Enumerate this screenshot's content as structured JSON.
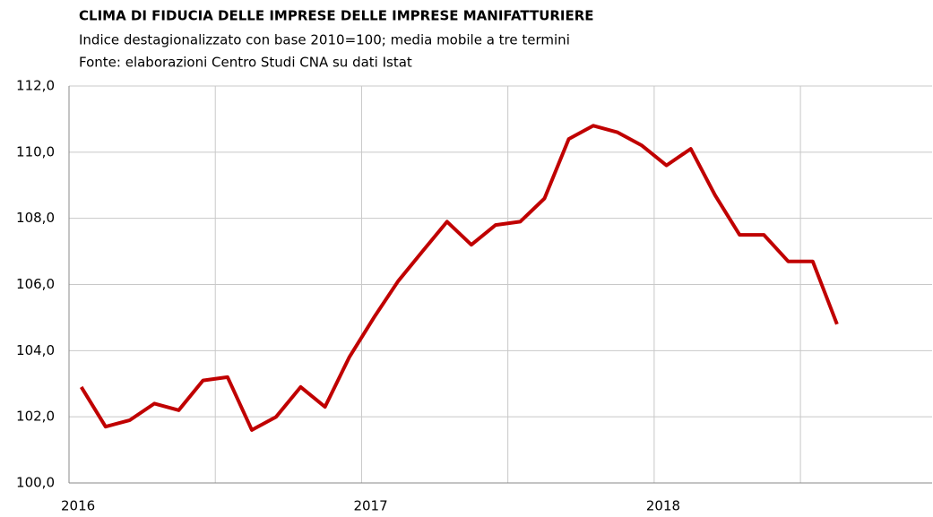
{
  "chart_data": {
    "type": "line",
    "title": "CLIMA DI FIDUCIA DELLE IMPRESE DELLE IMPRESE MANIFATTURIERE",
    "subtitle": "Indice destagionalizzato con base 2010=100; media mobile a tre termini",
    "source": "Fonte: elaborazioni Centro Studi CNA su dati Istat",
    "x": [
      2016.042,
      2016.125,
      2016.208,
      2016.292,
      2016.375,
      2016.458,
      2016.542,
      2016.625,
      2016.708,
      2016.792,
      2016.875,
      2016.958,
      2017.042,
      2017.125,
      2017.208,
      2017.292,
      2017.375,
      2017.458,
      2017.542,
      2017.625,
      2017.708,
      2017.792,
      2017.875,
      2017.958,
      2018.042,
      2018.125,
      2018.208,
      2018.292,
      2018.375,
      2018.458,
      2018.542,
      2018.625
    ],
    "series": [
      {
        "name": "Clima di fiducia",
        "color": "#c00000",
        "values": [
          102.9,
          101.7,
          101.9,
          102.4,
          102.2,
          103.1,
          103.2,
          101.6,
          102.0,
          102.9,
          102.3,
          103.8,
          105.0,
          106.1,
          107.0,
          107.9,
          107.2,
          107.8,
          107.9,
          108.6,
          110.4,
          110.8,
          110.6,
          110.2,
          109.6,
          110.1,
          108.7,
          107.5,
          107.5,
          106.7,
          106.7,
          104.8
        ]
      }
    ],
    "xlim": [
      2016,
      2018.95
    ],
    "xticks": [
      2016,
      2017,
      2018
    ],
    "xminorticks": [
      2016.5,
      2017.5,
      2018.5
    ],
    "ylim": [
      100,
      112
    ],
    "yticks": [
      {
        "value": 100,
        "label": "100,0"
      },
      {
        "value": 102,
        "label": "102,0"
      },
      {
        "value": 104,
        "label": "104,0"
      },
      {
        "value": 106,
        "label": "106,0"
      },
      {
        "value": 108,
        "label": "108,0"
      },
      {
        "value": 110,
        "label": "110,0"
      },
      {
        "value": 112,
        "label": "112,0"
      }
    ],
    "grid": true
  }
}
